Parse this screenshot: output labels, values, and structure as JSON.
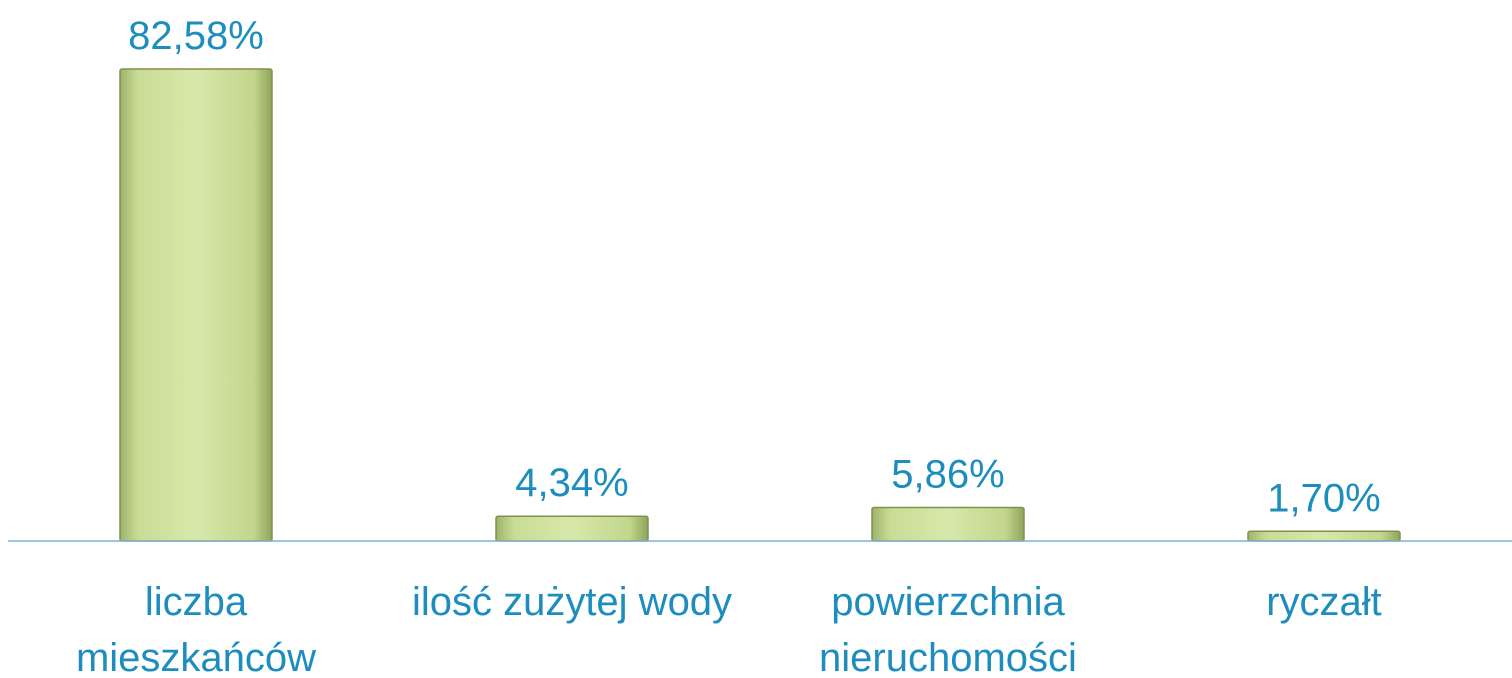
{
  "chart_data": {
    "type": "bar",
    "categories": [
      "liczba mieszkańców",
      "ilość zużytej wody",
      "powierzchnia nieruchomości",
      "ryczałt"
    ],
    "values": [
      82.58,
      4.34,
      5.86,
      1.7
    ],
    "value_labels": [
      "82,58%",
      "4,34%",
      "5,86%",
      "1,70%"
    ],
    "color": "#c5d88f"
  }
}
